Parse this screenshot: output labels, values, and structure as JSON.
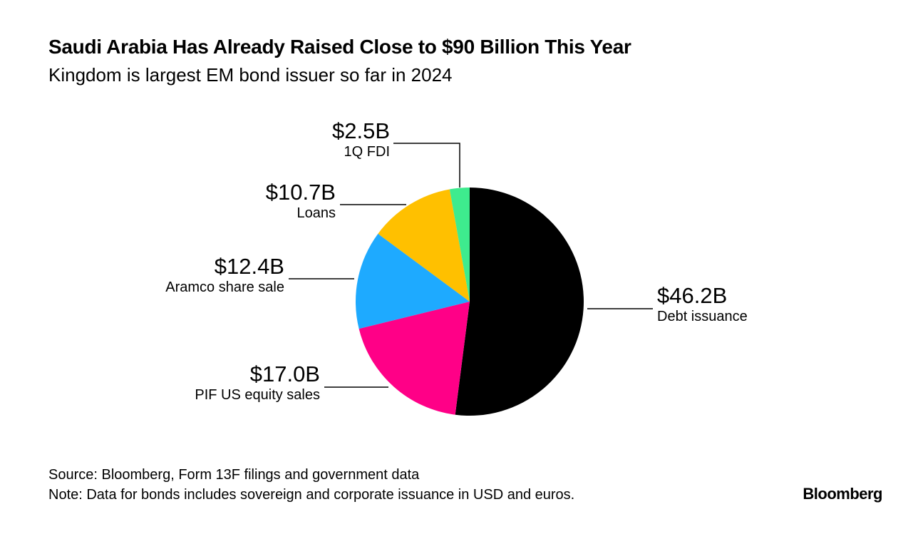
{
  "title": "Saudi Arabia Has Already Raised Close to $90 Billion This Year",
  "subtitle": "Kingdom is largest EM bond issuer so far in 2024",
  "chart_data": {
    "type": "pie",
    "title": "Saudi Arabia Has Already Raised Close to $90 Billion This Year",
    "subtitle": "Kingdom is largest EM bond issuer so far in 2024",
    "unit": "USD billions",
    "slices": [
      {
        "label": "Debt issuance",
        "value": 46.2,
        "value_label": "$46.2B",
        "color": "#000000"
      },
      {
        "label": "PIF US equity sales",
        "value": 17.0,
        "value_label": "$17.0B",
        "color": "#ff0087"
      },
      {
        "label": "Aramco share sale",
        "value": 12.4,
        "value_label": "$12.4B",
        "color": "#1eaaff"
      },
      {
        "label": "Loans",
        "value": 10.7,
        "value_label": "$10.7B",
        "color": "#ffc000"
      },
      {
        "label": "1Q FDI",
        "value": 2.5,
        "value_label": "$2.5B",
        "color": "#3eeb8e"
      }
    ],
    "start": "top",
    "direction": "clockwise"
  },
  "footer": {
    "source": "Source: Bloomberg, Form 13F filings and government data",
    "note": "Note: Data for bonds includes sovereign and corporate issuance in USD and euros.",
    "logo": "Bloomberg"
  }
}
